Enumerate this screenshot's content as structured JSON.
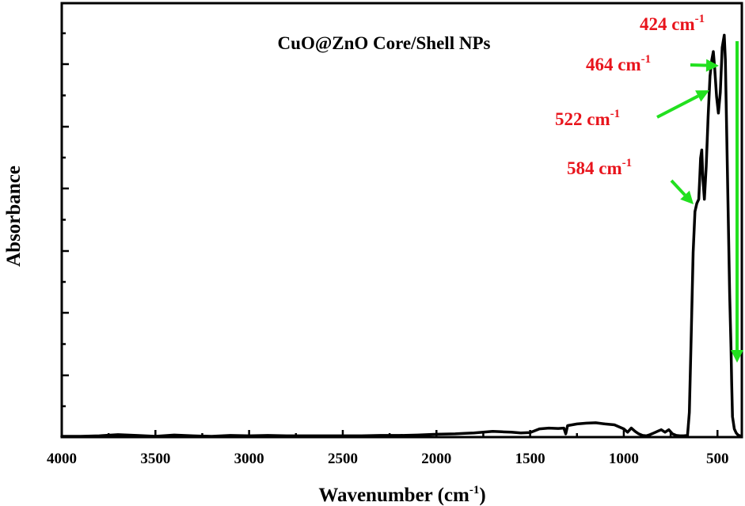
{
  "chart_data": {
    "type": "line",
    "title": "CuO@ZnO Core/Shell NPs",
    "xlabel": "Wavenumber (cm",
    "xlabel_sup": "-1",
    "xlabel_close": ")",
    "ylabel": "Absorbance",
    "xlim": [
      4000,
      370
    ],
    "ylim": [
      0,
      1.0
    ],
    "x_reversed": true,
    "x_ticks": [
      4000,
      3500,
      3000,
      2500,
      2000,
      1500,
      1000,
      500
    ],
    "x_tick_labels": [
      "4000",
      "3500",
      "3000",
      "2500",
      "2000",
      "1500",
      "1000",
      "500"
    ],
    "y_ticks_major": [
      0,
      0.1667,
      0.3333,
      0.5,
      0.6667,
      0.8333,
      1.0
    ],
    "y_tick_labels_shown": false,
    "grid": false,
    "line_color": "#000000",
    "annotation_color": "#e8141c",
    "arrow_color": "#22e01f",
    "series": [
      {
        "x": [
          4000,
          3900,
          3800,
          3700,
          3600,
          3500,
          3400,
          3300,
          3200,
          3100,
          3000,
          2900,
          2800,
          2700,
          2600,
          2500,
          2400,
          2300,
          2200,
          2100,
          2000,
          1900,
          1850,
          1800,
          1750,
          1700,
          1650,
          1600,
          1550,
          1500,
          1450,
          1400,
          1350,
          1320,
          1310,
          1300,
          1250,
          1200,
          1150,
          1100,
          1050,
          1000,
          980,
          960,
          940,
          920,
          900,
          880,
          860,
          840,
          820,
          800,
          780,
          760,
          740,
          720,
          700,
          680,
          660,
          650,
          640,
          630,
          620,
          610,
          600,
          595,
          590,
          584,
          578,
          570,
          560,
          550,
          540,
          530,
          522,
          515,
          505,
          495,
          485,
          475,
          464,
          458,
          450,
          442,
          435,
          428,
          424,
          420,
          410,
          400,
          390,
          380
        ],
        "y": [
          0.002,
          0.002,
          0.003,
          0.006,
          0.004,
          0.002,
          0.005,
          0.003,
          0.002,
          0.004,
          0.003,
          0.004,
          0.003,
          0.003,
          0.003,
          0.003,
          0.003,
          0.004,
          0.004,
          0.005,
          0.007,
          0.008,
          0.009,
          0.01,
          0.012,
          0.014,
          0.013,
          0.012,
          0.01,
          0.011,
          0.02,
          0.022,
          0.021,
          0.022,
          0.008,
          0.028,
          0.032,
          0.034,
          0.035,
          0.032,
          0.03,
          0.02,
          0.012,
          0.022,
          0.014,
          0.008,
          0.004,
          0.003,
          0.006,
          0.01,
          0.014,
          0.018,
          0.012,
          0.018,
          0.008,
          0.004,
          0.003,
          0.003,
          0.004,
          0.06,
          0.25,
          0.45,
          0.55,
          0.57,
          0.58,
          0.63,
          0.68,
          0.7,
          0.63,
          0.58,
          0.66,
          0.78,
          0.88,
          0.92,
          0.94,
          0.9,
          0.83,
          0.79,
          0.84,
          0.95,
          0.98,
          0.92,
          0.72,
          0.52,
          0.35,
          0.22,
          0.13,
          0.05,
          0.02,
          0.01,
          0.005,
          0.003
        ]
      }
    ],
    "annotations": [
      {
        "label": "584 cm",
        "sup": "-1",
        "wavenumber": 584
      },
      {
        "label": "522 cm",
        "sup": "-1",
        "wavenumber": 522
      },
      {
        "label": "464 cm",
        "sup": "-1",
        "wavenumber": 464
      },
      {
        "label": "424 cm",
        "sup": "-1",
        "wavenumber": 424
      }
    ]
  }
}
